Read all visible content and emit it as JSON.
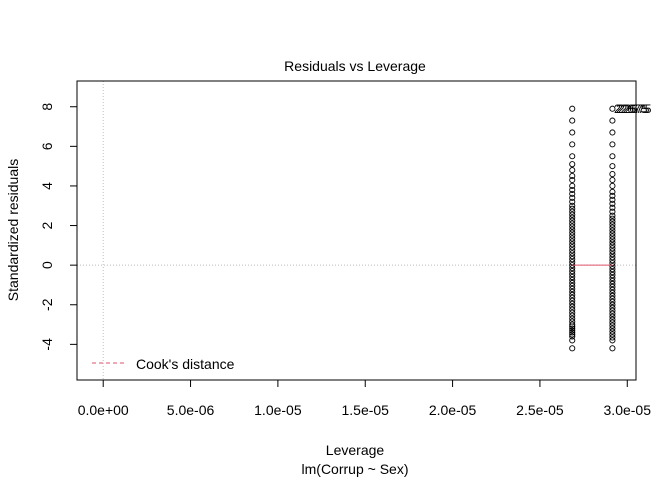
{
  "chart_data": {
    "type": "scatter",
    "title": "Residuals vs Leverage",
    "xlabel": "Leverage",
    "sublabel": "lm(Corrup ~ Sex)",
    "ylabel": "Standardized residuals",
    "xlim": [
      -1.5e-06,
      3.05e-05
    ],
    "ylim": [
      -5.8,
      9.3
    ],
    "x_ticks": [
      0,
      5e-06,
      1e-05,
      1.5e-05,
      2e-05,
      2.5e-05,
      3e-05
    ],
    "x_tick_labels": [
      "0.0e+00",
      "5.0e-06",
      "1.0e-05",
      "1.5e-05",
      "2.0e-05",
      "2.5e-05",
      "3.0e-05"
    ],
    "y_ticks": [
      -4,
      -2,
      0,
      2,
      4,
      6,
      8
    ],
    "y_tick_labels": [
      "-4",
      "-2",
      "0",
      "2",
      "4",
      "6",
      "8"
    ],
    "legend": {
      "label": "Cook's distance",
      "position": "bottom-left"
    },
    "outlier_label": "22675",
    "series": [
      {
        "x": 2.685e-05,
        "y": [
          7.9,
          7.3,
          6.7,
          6.1,
          5.5,
          5.1,
          4.8,
          4.5,
          4.3,
          4.0,
          3.8,
          3.6,
          3.4,
          3.2,
          3.0,
          2.85,
          2.7,
          2.55,
          2.4,
          2.25,
          2.1,
          1.95,
          1.8,
          1.65,
          1.5,
          1.35,
          1.2,
          1.05,
          0.9,
          0.75,
          0.6,
          0.45,
          0.3,
          0.15,
          0.0,
          -0.15,
          -0.3,
          -0.45,
          -0.6,
          -0.75,
          -0.9,
          -1.05,
          -1.2,
          -1.35,
          -1.5,
          -1.65,
          -1.8,
          -1.95,
          -2.1,
          -2.25,
          -2.4,
          -2.55,
          -2.7,
          -2.85,
          -3.0,
          -3.1,
          -3.2,
          -3.3,
          -3.4,
          -3.5,
          -3.6,
          -3.8,
          -4.2
        ]
      },
      {
        "x": 2.915e-05,
        "y": [
          7.9,
          7.3,
          6.7,
          6.1,
          5.5,
          5.0,
          4.6,
          4.3,
          4.0,
          3.7,
          3.5,
          3.3,
          3.1,
          2.9,
          2.7,
          2.5,
          2.35,
          2.2,
          2.05,
          1.9,
          1.75,
          1.6,
          1.45,
          1.3,
          1.15,
          1.0,
          0.85,
          0.7,
          0.55,
          0.4,
          0.25,
          0.1,
          -0.05,
          -0.2,
          -0.35,
          -0.5,
          -0.65,
          -0.8,
          -0.95,
          -1.1,
          -1.25,
          -1.4,
          -1.55,
          -1.7,
          -1.85,
          -2.0,
          -2.15,
          -2.3,
          -2.45,
          -2.6,
          -2.75,
          -2.9,
          -3.05,
          -3.2,
          -3.35,
          -3.5,
          -3.65,
          -3.8,
          -4.2
        ]
      }
    ],
    "smooth_line": {
      "x": [
        2.685e-05,
        2.915e-05
      ],
      "y": [
        0.0,
        0.0
      ]
    },
    "colors": {
      "points": "#000000",
      "smooth": "#df536b",
      "reference": "#bebebe",
      "cook": "#df536b"
    }
  }
}
